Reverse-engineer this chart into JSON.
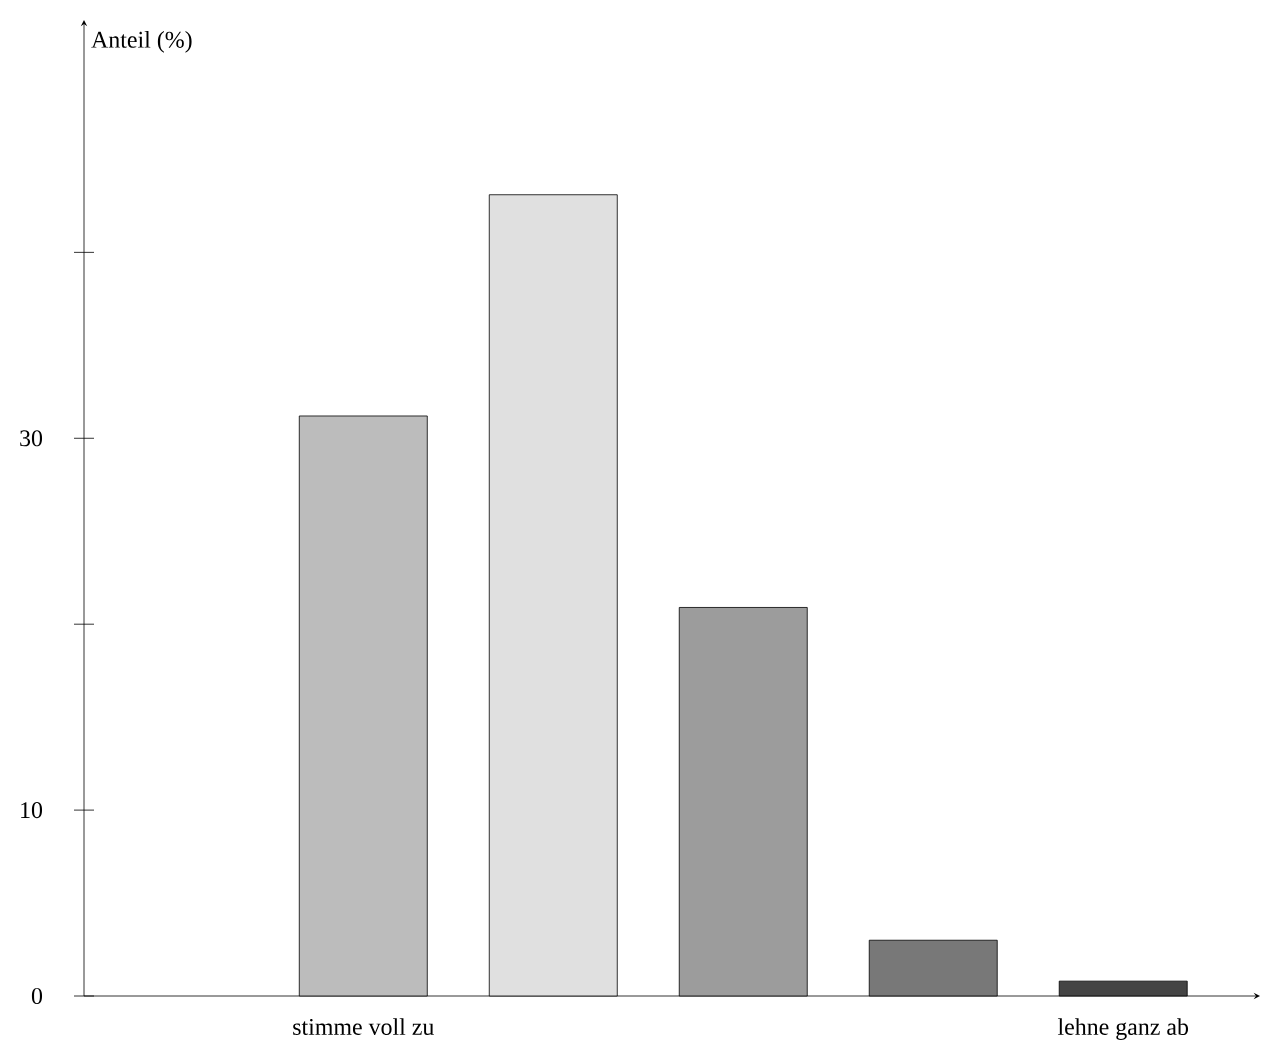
{
  "chart_data": {
    "type": "bar",
    "ylabel": "Anteil (%)",
    "categories": [
      null,
      "stimme voll zu",
      null,
      null,
      null,
      "lehne ganz ab"
    ],
    "values": [
      null,
      31.2,
      43.1,
      20.9,
      3.0,
      0.8
    ],
    "colors": [
      "#ffffff",
      "#bcbcbc",
      "#e0e0e0",
      "#9c9c9c",
      "#787878",
      "#444444"
    ],
    "ylim": [
      0,
      52.5
    ],
    "yticks": [
      0,
      10,
      {
        "value": 20,
        "label": null
      },
      30,
      {
        "value": 40,
        "label": null
      }
    ],
    "grid": false
  }
}
